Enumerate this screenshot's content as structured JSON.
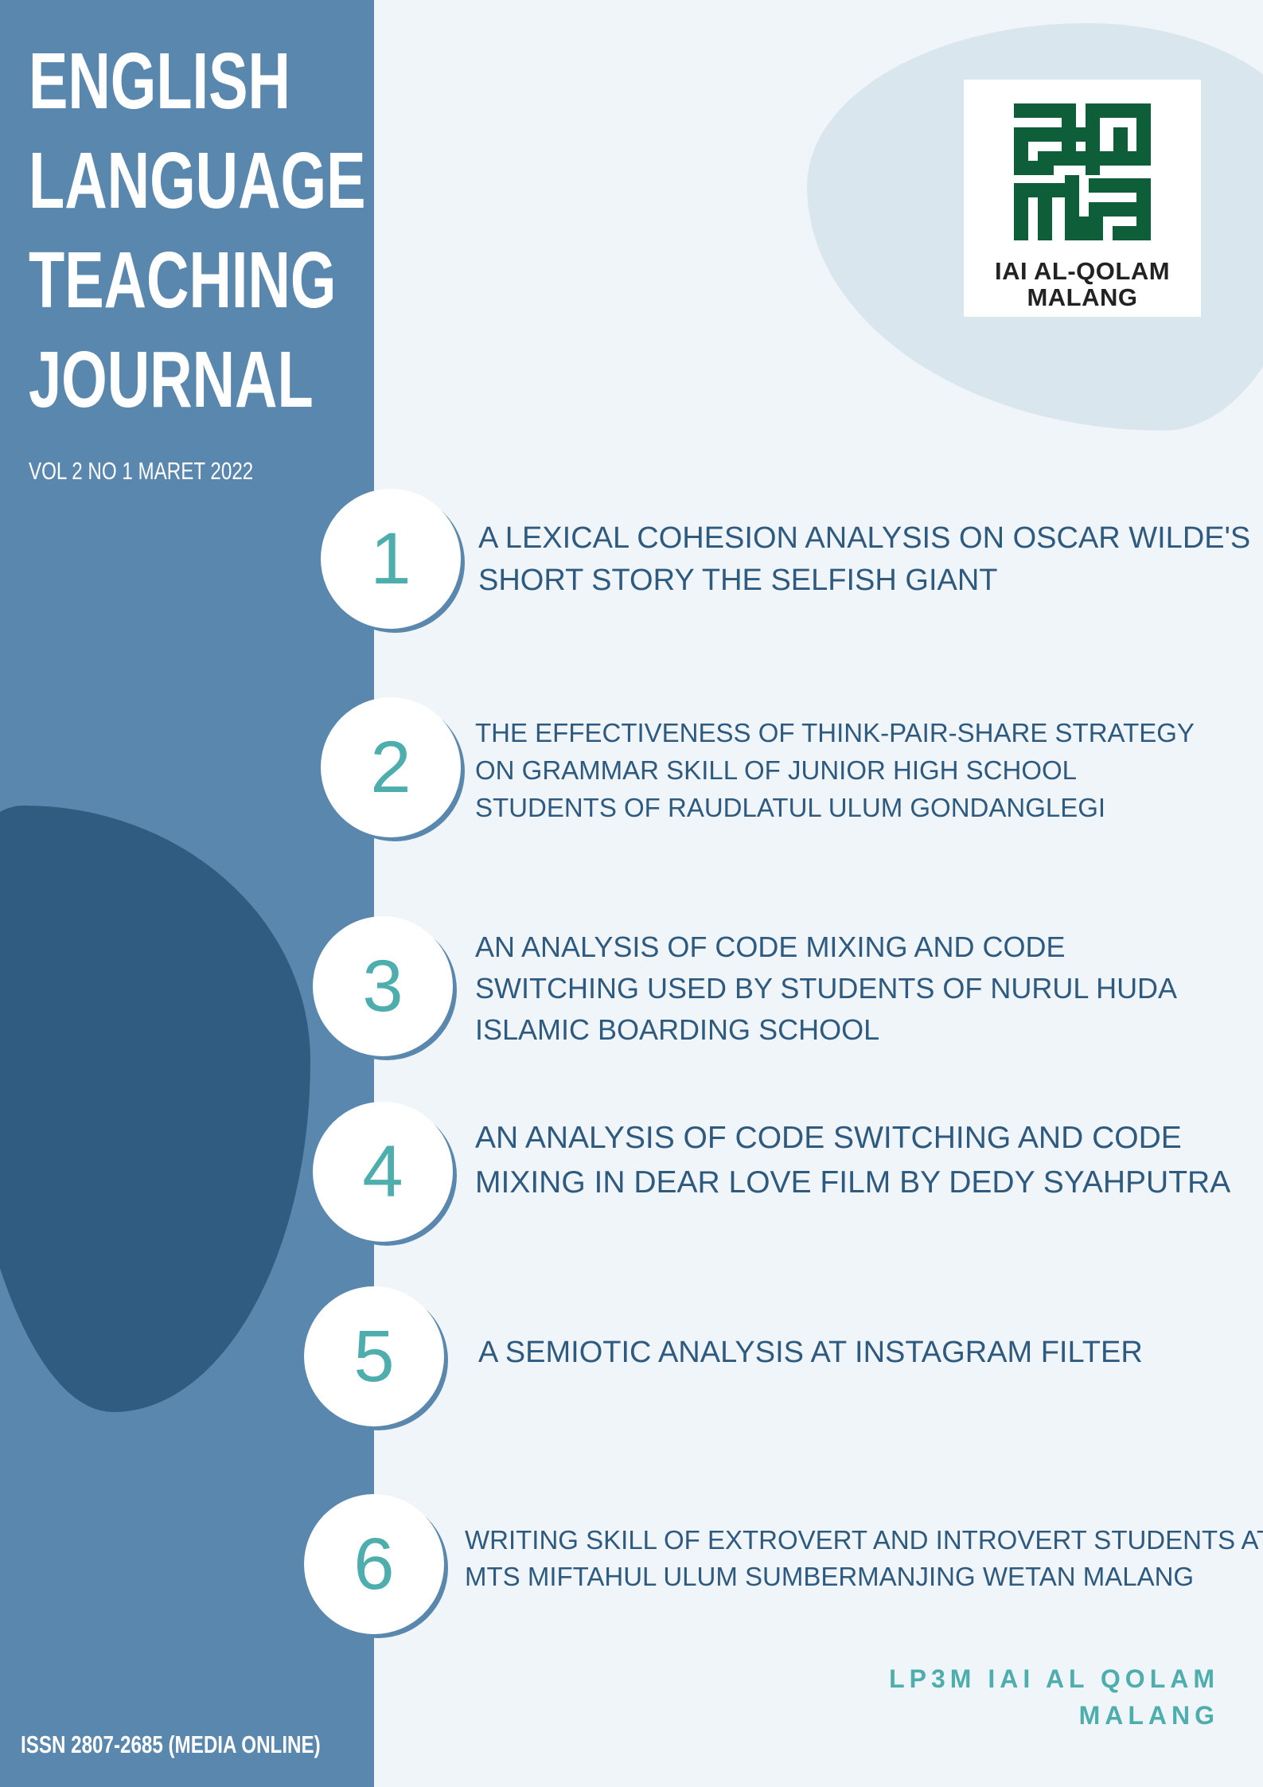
{
  "journal": {
    "title_lines": [
      "ENGLISH",
      "LANGUAGE",
      "TEACHING",
      "JOURNAL"
    ],
    "volume": "VOL 2 NO 1 MARET 2022",
    "issn": "ISSN 2807-2685 (MEDIA ONLINE)"
  },
  "logo": {
    "line1": "IAI AL-QOLAM",
    "line2": "MALANG",
    "color": "#0e5e3a"
  },
  "articles": [
    {
      "number": "1",
      "lines": [
        "A LEXICAL COHESION ANALYSIS ON OSCAR WILDE'S",
        "SHORT STORY THE SELFISH GIANT"
      ]
    },
    {
      "number": "2",
      "lines": [
        "THE EFFECTIVENESS OF THINK-PAIR-SHARE STRATEGY",
        "ON GRAMMAR SKILL OF JUNIOR HIGH SCHOOL",
        "STUDENTS OF RAUDLATUL ULUM GONDANGLEGI"
      ]
    },
    {
      "number": "3",
      "lines": [
        "AN ANALYSIS OF CODE MIXING AND CODE",
        "SWITCHING USED BY STUDENTS OF NURUL HUDA",
        "ISLAMIC BOARDING SCHOOL"
      ]
    },
    {
      "number": "4",
      "lines": [
        "AN ANALYSIS OF CODE SWITCHING AND CODE",
        "MIXING IN DEAR LOVE FILM BY DEDY SYAHPUTRA"
      ]
    },
    {
      "number": "5",
      "lines": [
        "A SEMIOTIC ANALYSIS AT INSTAGRAM FILTER"
      ]
    },
    {
      "number": "6",
      "lines": [
        "WRITING SKILL OF EXTROVERT AND INTROVERT STUDENTS AT",
        "MTS MIFTAHUL ULUM SUMBERMANJING WETAN MALANG"
      ]
    }
  ],
  "publisher": {
    "line1": "LP3M IAI AL QOLAM",
    "line2": "MALANG"
  },
  "colors": {
    "sidebar": "#5a87ae",
    "dark_blob": "#2f5c80",
    "accent": "#4eadad",
    "text": "#2e5a7f",
    "background": "#f0f5f9"
  }
}
